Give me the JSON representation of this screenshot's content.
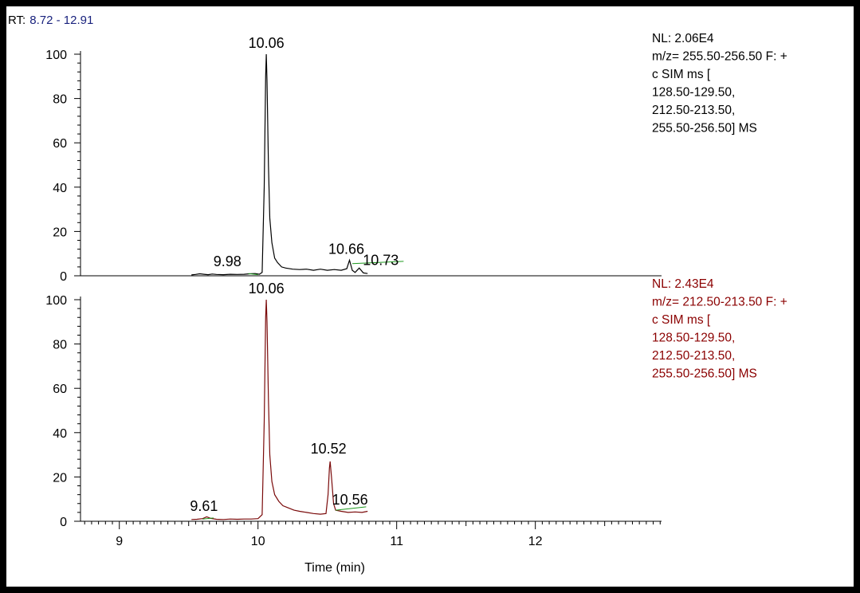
{
  "rt_range": {
    "label": "RT:",
    "value": "8.72 - 12.91",
    "label_color": "#000000",
    "value_color": "#1a237e"
  },
  "x_axis": {
    "label": "Time (min)",
    "min": 8.72,
    "max": 12.91,
    "ticks": [
      9,
      10,
      11,
      12
    ]
  },
  "colors": {
    "top_trace": "#000000",
    "bottom_trace": "#7a0a0a",
    "baseline": "#1f9a1f",
    "top_text": "#000000",
    "bottom_text": "#8b0000"
  },
  "chart_data": [
    {
      "type": "line",
      "ylim": [
        0,
        100
      ],
      "y_ticks": [
        0,
        20,
        40,
        60,
        80,
        100
      ],
      "info_lines": [
        "NL: 2.06E4",
        "m/z= 255.50-256.50 F: +",
        "c SIM ms [",
        "128.50-129.50,",
        "212.50-213.50,",
        "255.50-256.50]  MS"
      ],
      "peak_labels": [
        {
          "text": "10.06",
          "x": 10.06,
          "y": 100
        },
        {
          "text": "9.98",
          "x": 9.98,
          "y": 1
        },
        {
          "text": "10.66",
          "x": 10.66,
          "y": 7
        },
        {
          "text": "10.73",
          "x": 10.73,
          "y": 2
        }
      ],
      "baseline_segments": [
        {
          "x": [
            9.93,
            10.0
          ],
          "y": [
            1.0,
            0.5
          ]
        },
        {
          "x": [
            10.68,
            11.05
          ],
          "y": [
            5.5,
            6.5
          ]
        }
      ],
      "x": [
        9.52,
        9.55,
        9.58,
        9.61,
        9.64,
        9.67,
        9.7,
        9.75,
        9.8,
        9.85,
        9.9,
        9.94,
        9.98,
        10.01,
        10.03,
        10.045,
        10.055,
        10.06,
        10.065,
        10.075,
        10.085,
        10.1,
        10.12,
        10.14,
        10.17,
        10.2,
        10.25,
        10.3,
        10.35,
        10.4,
        10.45,
        10.5,
        10.55,
        10.6,
        10.64,
        10.66,
        10.68,
        10.7,
        10.73,
        10.76,
        10.79
      ],
      "values": [
        0.4,
        0.6,
        0.9,
        0.7,
        0.5,
        0.8,
        0.6,
        0.5,
        0.7,
        0.6,
        0.7,
        0.9,
        1.0,
        0.7,
        1.5,
        40,
        90,
        100,
        88,
        50,
        26,
        15,
        8,
        6,
        4,
        3.5,
        3,
        2.8,
        3,
        2.5,
        3,
        2.5,
        2.8,
        2.5,
        3.2,
        7,
        2.5,
        1.5,
        3.5,
        1.3,
        1.0
      ]
    },
    {
      "type": "line",
      "ylim": [
        0,
        100
      ],
      "y_ticks": [
        0,
        20,
        40,
        60,
        80,
        100
      ],
      "info_lines": [
        "NL: 2.43E4",
        "m/z= 212.50-213.50 F: +",
        "c SIM ms [",
        "128.50-129.50,",
        "212.50-213.50,",
        "255.50-256.50]  MS"
      ],
      "peak_labels": [
        {
          "text": "10.06",
          "x": 10.06,
          "y": 100
        },
        {
          "text": "9.61",
          "x": 9.61,
          "y": 1.5
        },
        {
          "text": "10.52",
          "x": 10.52,
          "y": 27
        },
        {
          "text": "10.56",
          "x": 10.56,
          "y": 5
        }
      ],
      "baseline_segments": [
        {
          "x": [
            9.6,
            9.68
          ],
          "y": [
            1.0,
            1.5
          ]
        },
        {
          "x": [
            10.56,
            10.78
          ],
          "y": [
            5.0,
            6.5
          ]
        }
      ],
      "x": [
        9.52,
        9.56,
        9.6,
        9.63,
        9.66,
        9.7,
        9.75,
        9.8,
        9.85,
        9.9,
        9.95,
        10.0,
        10.03,
        10.045,
        10.055,
        10.06,
        10.065,
        10.075,
        10.085,
        10.1,
        10.12,
        10.15,
        10.18,
        10.22,
        10.26,
        10.3,
        10.35,
        10.4,
        10.45,
        10.49,
        10.505,
        10.515,
        10.52,
        10.53,
        10.545,
        10.56,
        10.6,
        10.65,
        10.7,
        10.75,
        10.79
      ],
      "values": [
        0.8,
        0.9,
        1.2,
        2.0,
        1.3,
        0.9,
        0.8,
        1.0,
        0.9,
        1.0,
        1.0,
        1.2,
        3,
        45,
        92,
        100,
        90,
        55,
        30,
        18,
        12,
        9,
        7,
        6,
        5,
        4.5,
        4,
        3.5,
        3.2,
        3.5,
        12,
        24,
        27,
        20,
        8,
        5,
        4.5,
        4.0,
        4.2,
        4.0,
        4.5
      ]
    }
  ]
}
